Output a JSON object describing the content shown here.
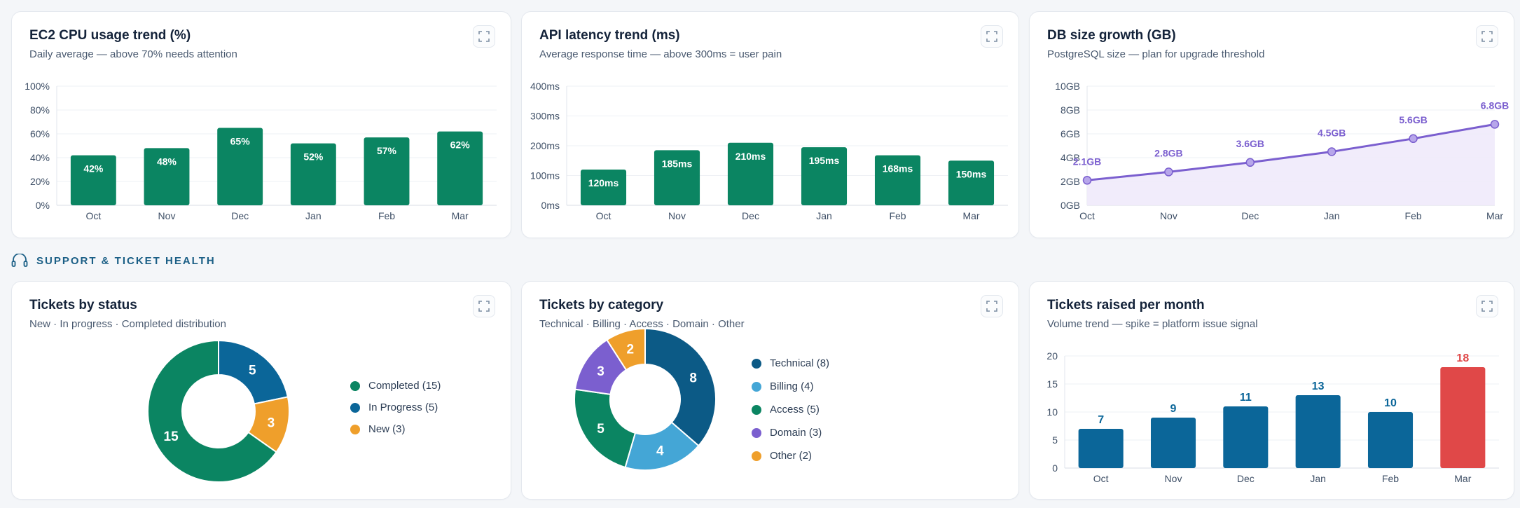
{
  "colors": {
    "green": "#0b8562",
    "purple": "#7b5fcf",
    "blue": "#0b6699",
    "red": "#e04848",
    "lightblue": "#44a6d6",
    "orange": "#ef9f2b",
    "darkblue": "#0c5a86",
    "area": "#efeafb"
  },
  "section": {
    "title": "SUPPORT & TICKET HEALTH",
    "icon": "headset-icon"
  },
  "cards": {
    "cpu": {
      "title": "EC2 CPU usage trend (%)",
      "subtitle": "Daily average — above 70% needs attention",
      "chart_data": {
        "type": "bar",
        "categories": [
          "Oct",
          "Nov",
          "Dec",
          "Jan",
          "Feb",
          "Mar"
        ],
        "values": [
          42,
          48,
          65,
          52,
          57,
          62
        ],
        "value_labels": [
          "42%",
          "48%",
          "65%",
          "52%",
          "57%",
          "62%"
        ],
        "yticks": [
          "0%",
          "20%",
          "40%",
          "60%",
          "80%",
          "100%"
        ],
        "ylim": [
          0,
          100
        ],
        "grid": true,
        "color": "#0b8562"
      }
    },
    "api": {
      "title": "API latency trend (ms)",
      "subtitle": "Average response time — above 300ms = user pain",
      "chart_data": {
        "type": "bar",
        "categories": [
          "Oct",
          "Nov",
          "Dec",
          "Jan",
          "Feb",
          "Mar"
        ],
        "values": [
          120,
          185,
          210,
          195,
          168,
          150
        ],
        "value_labels": [
          "120ms",
          "185ms",
          "210ms",
          "195ms",
          "168ms",
          "150ms"
        ],
        "yticks": [
          "0ms",
          "100ms",
          "200ms",
          "300ms",
          "400ms"
        ],
        "ylim": [
          0,
          400
        ],
        "grid": true,
        "color": "#0b8562"
      }
    },
    "db": {
      "title": "DB size growth (GB)",
      "subtitle": "PostgreSQL size — plan for upgrade threshold",
      "chart_data": {
        "type": "area",
        "categories": [
          "Oct",
          "Nov",
          "Dec",
          "Jan",
          "Feb",
          "Mar"
        ],
        "values": [
          2.1,
          2.8,
          3.6,
          4.5,
          5.6,
          6.8
        ],
        "value_labels": [
          "2.1GB",
          "2.8GB",
          "3.6GB",
          "4.5GB",
          "5.6GB",
          "6.8GB"
        ],
        "yticks": [
          "0GB",
          "2GB",
          "4GB",
          "6GB",
          "8GB",
          "10GB"
        ],
        "ylim": [
          0,
          10
        ],
        "grid": true,
        "color": "#7b5fcf"
      }
    },
    "status": {
      "title": "Tickets by status",
      "subtitle": "New · In progress · Completed distribution",
      "chart_data": {
        "type": "pie",
        "donut": true,
        "slices": [
          {
            "name": "In Progress",
            "value": 5,
            "color": "#0b6699",
            "legend": "In Progress (5)"
          },
          {
            "name": "New",
            "value": 3,
            "color": "#ef9f2b",
            "legend": "New (3)"
          },
          {
            "name": "Completed",
            "value": 15,
            "color": "#0b8562",
            "legend": "Completed (15)"
          }
        ],
        "legend_order": [
          2,
          0,
          1
        ],
        "legend_placement": "right"
      }
    },
    "category": {
      "title": "Tickets by category",
      "subtitle": "Technical · Billing · Access · Domain · Other",
      "chart_data": {
        "type": "pie",
        "donut": true,
        "slices": [
          {
            "name": "Technical",
            "value": 8,
            "color": "#0c5a86",
            "legend": "Technical (8)"
          },
          {
            "name": "Billing",
            "value": 4,
            "color": "#44a6d6",
            "legend": "Billing (4)"
          },
          {
            "name": "Access",
            "value": 5,
            "color": "#0b8562",
            "legend": "Access (5)"
          },
          {
            "name": "Domain",
            "value": 3,
            "color": "#7b5fcf",
            "legend": "Domain (3)"
          },
          {
            "name": "Other",
            "value": 2,
            "color": "#ef9f2b",
            "legend": "Other (2)"
          }
        ],
        "legend_order": [
          0,
          1,
          2,
          3,
          4
        ],
        "legend_placement": "right"
      }
    },
    "tickets": {
      "title": "Tickets raised per month",
      "subtitle": "Volume trend — spike = platform issue signal",
      "chart_data": {
        "type": "bar",
        "categories": [
          "Oct",
          "Nov",
          "Dec",
          "Jan",
          "Feb",
          "Mar"
        ],
        "values": [
          7,
          9,
          11,
          13,
          10,
          18
        ],
        "value_labels": [
          "7",
          "9",
          "11",
          "13",
          "10",
          "18"
        ],
        "yticks": [
          "0",
          "5",
          "10",
          "15",
          "20"
        ],
        "ylim": [
          0,
          20
        ],
        "grid": true,
        "color": "#0b6699",
        "highlight_color": "#e04848",
        "highlight_index": 5
      }
    }
  }
}
